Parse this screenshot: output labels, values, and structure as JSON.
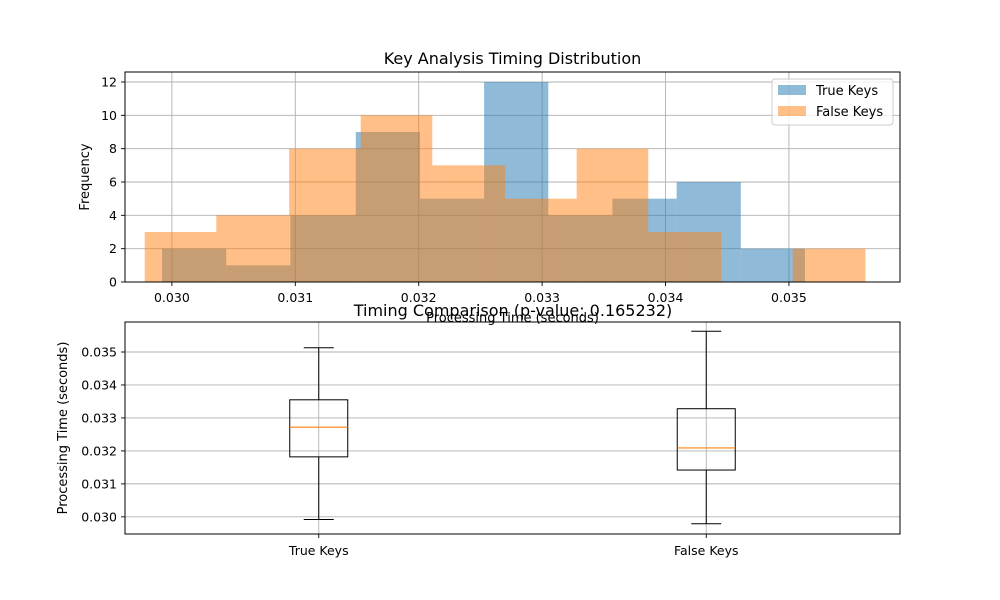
{
  "chart_data": [
    {
      "type": "histogram",
      "title": "Key Analysis Timing Distribution",
      "xlabel": "Processing Time (seconds)",
      "ylabel": "Frequency",
      "xlim": [
        0.02962,
        0.0359
      ],
      "ylim": [
        0,
        12.6
      ],
      "xticks": [
        "0.030",
        "0.031",
        "0.032",
        "0.033",
        "0.034",
        "0.035"
      ],
      "yticks": [
        "0",
        "2",
        "4",
        "6",
        "8",
        "10",
        "12"
      ],
      "grid": true,
      "legend_position": "top-right",
      "series": [
        {
          "name": "True Keys",
          "color": "#1f77b4",
          "alpha": 0.5,
          "bin_edges": [
            0.02992,
            0.03044,
            0.03096,
            0.03149,
            0.03201,
            0.03253,
            0.03305,
            0.03357,
            0.03409,
            0.03461,
            0.03513
          ],
          "counts": [
            2,
            1,
            4,
            9,
            5,
            12,
            4,
            5,
            6,
            2
          ]
        },
        {
          "name": "False Keys",
          "color": "#ff7f0e",
          "alpha": 0.5,
          "bin_edges": [
            0.02978,
            0.03036,
            0.03095,
            0.03153,
            0.03211,
            0.0327,
            0.03328,
            0.03386,
            0.03445,
            0.03503,
            0.03562
          ],
          "counts": [
            3,
            4,
            8,
            10,
            7,
            5,
            8,
            3,
            0,
            2
          ]
        }
      ]
    },
    {
      "type": "boxplot",
      "title": "Timing Comparison (p-value: 0.165232)",
      "ylabel": "Processing Time (seconds)",
      "ylim": [
        0.02948,
        0.03591
      ],
      "yticks": [
        "0.030",
        "0.031",
        "0.032",
        "0.033",
        "0.034",
        "0.035"
      ],
      "categories": [
        "True Keys",
        "False Keys"
      ],
      "grid": true,
      "boxes": [
        {
          "name": "True Keys",
          "min": 0.02992,
          "q1": 0.03182,
          "median": 0.03272,
          "q3": 0.03355,
          "max": 0.03513
        },
        {
          "name": "False Keys",
          "min": 0.02979,
          "q1": 0.03142,
          "median": 0.03209,
          "q3": 0.03328,
          "max": 0.03563
        }
      ]
    }
  ]
}
